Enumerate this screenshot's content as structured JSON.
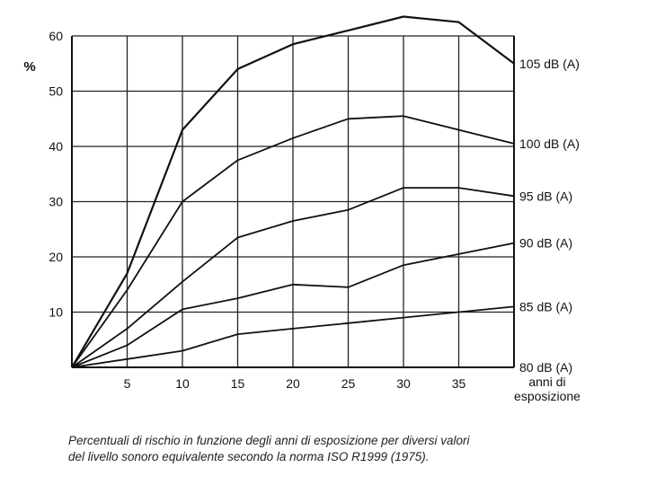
{
  "chart_data": {
    "type": "line",
    "ylabel": "%",
    "xlabel": [
      "anni di",
      "esposizione"
    ],
    "xlim": [
      0,
      40
    ],
    "ylim": [
      0,
      60
    ],
    "x_ticks": [
      5,
      10,
      15,
      20,
      25,
      30,
      35
    ],
    "y_ticks": [
      10,
      20,
      30,
      40,
      50,
      60
    ],
    "grid": true,
    "series": [
      {
        "name": "105 dB (A)",
        "x": [
          0,
          5,
          10,
          15,
          20,
          25,
          30,
          35,
          40
        ],
        "y": [
          0,
          17,
          43,
          54,
          58.5,
          61,
          63.5,
          62.5,
          55
        ]
      },
      {
        "name": "100 dB (A)",
        "x": [
          0,
          5,
          10,
          15,
          20,
          25,
          30,
          35,
          40
        ],
        "y": [
          0,
          14,
          30,
          37.5,
          41.5,
          45,
          45.5,
          43,
          40.5
        ]
      },
      {
        "name": "95 dB (A)",
        "x": [
          0,
          5,
          10,
          15,
          20,
          25,
          30,
          35,
          40
        ],
        "y": [
          0,
          7,
          15.5,
          23.5,
          26.5,
          28.5,
          32.5,
          32.5,
          31
        ]
      },
      {
        "name": "90 dB (A)",
        "x": [
          0,
          5,
          10,
          15,
          20,
          25,
          30,
          35,
          40
        ],
        "y": [
          0,
          4,
          10.5,
          12.5,
          15,
          14.5,
          18.5,
          20.5,
          22.5
        ]
      },
      {
        "name": "85 dB (A)",
        "x": [
          0,
          5,
          10,
          15,
          20,
          25,
          30,
          35,
          40
        ],
        "y": [
          0,
          1.5,
          3,
          6,
          7,
          8,
          9,
          10,
          11
        ]
      },
      {
        "name": "80 dB (A)",
        "x": [
          0,
          40
        ],
        "y": [
          0,
          0
        ]
      }
    ],
    "caption": [
      "Percentuali di rischio in funzione degli anni di esposizione per diversi valori",
      "del livello sonoro equivalente secondo la norma ISO R1999 (1975)."
    ]
  }
}
